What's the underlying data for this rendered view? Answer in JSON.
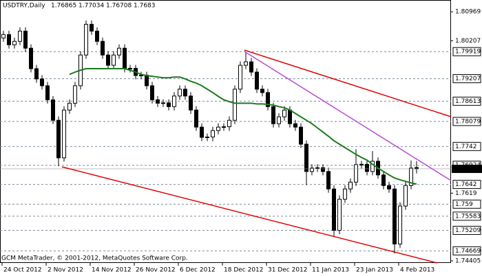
{
  "chart_data": {
    "type": "candlestick",
    "symbol": "USDTRY,Daily",
    "header_values": [
      1.76865,
      1.77034,
      1.76708,
      1.7683
    ],
    "footer": "GCM MetaTrader, © 2001-2012, MetaQuotes Software Corp.",
    "dates": [
      "24 Oct 2012",
      "2 Nov 2012",
      "14 Nov 2012",
      "26 Nov 2012",
      "6 Dec 2012",
      "18 Dec 2012",
      "31 Dec 2012",
      "11 Jan 2013",
      "23 Jan 2013",
      "4 Feb 2013"
    ],
    "ylim": [
      1.7435,
      1.8128
    ],
    "yticks": [
      1.80969,
      1.80207,
      1.7619,
      1.74405
    ],
    "levels": [
      1.79919,
      1.79207,
      1.78613,
      1.78079,
      1.7742,
      1.76924,
      1.7642,
      1.759,
      1.75583,
      1.75209,
      1.74669
    ],
    "current_price": 1.7683,
    "ohlc": [
      [
        1.8028,
        1.8047,
        1.8018,
        1.8037
      ],
      [
        1.8037,
        1.8047,
        1.8,
        1.801
      ],
      [
        1.801,
        1.8029,
        1.8,
        1.8019
      ],
      [
        1.8019,
        1.8056,
        1.8009,
        1.8046
      ],
      [
        1.8046,
        1.8056,
        1.7991,
        1.8001
      ],
      [
        1.8001,
        1.8011,
        1.7937,
        1.7947
      ],
      [
        1.7947,
        1.7957,
        1.791,
        1.792
      ],
      [
        1.792,
        1.793,
        1.7892,
        1.7902
      ],
      [
        1.7902,
        1.7912,
        1.7855,
        1.7865
      ],
      [
        1.7865,
        1.7875,
        1.7801,
        1.7811
      ],
      [
        1.7811,
        1.7821,
        1.769,
        1.7712
      ],
      [
        1.7712,
        1.7848,
        1.7702,
        1.7838
      ],
      [
        1.7838,
        1.7866,
        1.7828,
        1.7856
      ],
      [
        1.7856,
        1.7912,
        1.7846,
        1.7902
      ],
      [
        1.7902,
        1.7993,
        1.7892,
        1.7983
      ],
      [
        1.7983,
        1.8074,
        1.7973,
        1.8064
      ],
      [
        1.8064,
        1.8074,
        1.8036,
        1.8046
      ],
      [
        1.8046,
        1.8056,
        1.8009,
        1.8019
      ],
      [
        1.8019,
        1.8029,
        1.7973,
        1.7983
      ],
      [
        1.7983,
        1.7993,
        1.7946,
        1.7956
      ],
      [
        1.7956,
        1.7993,
        1.7946,
        1.7983
      ],
      [
        1.7983,
        1.8011,
        1.7973,
        1.8001
      ],
      [
        1.8001,
        1.8011,
        1.7937,
        1.7947
      ],
      [
        1.7947,
        1.7957,
        1.7937,
        1.7948
      ],
      [
        1.7948,
        1.7957,
        1.7919,
        1.7929
      ],
      [
        1.7929,
        1.7939,
        1.7919,
        1.793
      ],
      [
        1.793,
        1.7939,
        1.7892,
        1.7902
      ],
      [
        1.7902,
        1.7912,
        1.7855,
        1.7865
      ],
      [
        1.7865,
        1.7875,
        1.7846,
        1.7856
      ],
      [
        1.7856,
        1.7866,
        1.7846,
        1.7857
      ],
      [
        1.7857,
        1.7866,
        1.7837,
        1.7847
      ],
      [
        1.7847,
        1.7885,
        1.7837,
        1.7875
      ],
      [
        1.7875,
        1.7903,
        1.7865,
        1.7893
      ],
      [
        1.7893,
        1.7903,
        1.7865,
        1.7875
      ],
      [
        1.7875,
        1.7885,
        1.7828,
        1.7838
      ],
      [
        1.7838,
        1.7848,
        1.7783,
        1.7793
      ],
      [
        1.7793,
        1.7803,
        1.7756,
        1.7766
      ],
      [
        1.7766,
        1.7776,
        1.7756,
        1.7767
      ],
      [
        1.7767,
        1.7794,
        1.7756,
        1.7784
      ],
      [
        1.7784,
        1.7803,
        1.7774,
        1.7793
      ],
      [
        1.7793,
        1.7803,
        1.7783,
        1.7794
      ],
      [
        1.7794,
        1.7821,
        1.7783,
        1.7811
      ],
      [
        1.7811,
        1.7903,
        1.7801,
        1.7893
      ],
      [
        1.7893,
        1.7966,
        1.7883,
        1.7956
      ],
      [
        1.7956,
        1.799,
        1.7946,
        1.7965
      ],
      [
        1.7965,
        1.7975,
        1.7928,
        1.7938
      ],
      [
        1.7938,
        1.7948,
        1.7883,
        1.7893
      ],
      [
        1.7893,
        1.7903,
        1.7874,
        1.7884
      ],
      [
        1.7884,
        1.7894,
        1.7837,
        1.7847
      ],
      [
        1.7847,
        1.7857,
        1.7792,
        1.7802
      ],
      [
        1.7802,
        1.783,
        1.7792,
        1.782
      ],
      [
        1.782,
        1.7848,
        1.781,
        1.7838
      ],
      [
        1.7838,
        1.7848,
        1.7792,
        1.7802
      ],
      [
        1.7802,
        1.7812,
        1.7783,
        1.7793
      ],
      [
        1.7793,
        1.7803,
        1.7738,
        1.7748
      ],
      [
        1.7748,
        1.7758,
        1.764,
        1.7676
      ],
      [
        1.7676,
        1.7695,
        1.7666,
        1.7685
      ],
      [
        1.7685,
        1.7695,
        1.7675,
        1.7686
      ],
      [
        1.7686,
        1.7695,
        1.7666,
        1.7676
      ],
      [
        1.7676,
        1.7686,
        1.762,
        1.763
      ],
      [
        1.763,
        1.764,
        1.7505,
        1.7521
      ],
      [
        1.7521,
        1.7613,
        1.7511,
        1.7603
      ],
      [
        1.7603,
        1.764,
        1.7593,
        1.763
      ],
      [
        1.763,
        1.7658,
        1.762,
        1.7648
      ],
      [
        1.7648,
        1.7735,
        1.7638,
        1.7694
      ],
      [
        1.7694,
        1.7704,
        1.7684,
        1.7695
      ],
      [
        1.7695,
        1.7704,
        1.7666,
        1.7676
      ],
      [
        1.7676,
        1.773,
        1.7666,
        1.7703
      ],
      [
        1.7703,
        1.7713,
        1.7657,
        1.7667
      ],
      [
        1.7667,
        1.7677,
        1.7629,
        1.7639
      ],
      [
        1.7639,
        1.7649,
        1.762,
        1.763
      ],
      [
        1.763,
        1.764,
        1.746,
        1.7485
      ],
      [
        1.7485,
        1.7595,
        1.7475,
        1.7585
      ],
      [
        1.7585,
        1.7649,
        1.7575,
        1.7639
      ],
      [
        1.7639,
        1.7705,
        1.7629,
        1.7685
      ],
      [
        1.76865,
        1.77034,
        1.76708,
        1.7683
      ]
    ],
    "ma": {
      "color": "#1a7a1a",
      "values": [
        null,
        null,
        null,
        null,
        null,
        null,
        null,
        null,
        null,
        null,
        null,
        null,
        1.7932,
        1.7938,
        1.7943,
        1.7947,
        1.7947,
        1.7947,
        1.7947,
        1.7947,
        1.7947,
        1.7947,
        1.7947,
        1.7943,
        1.7938,
        1.7932,
        1.7929,
        1.7927,
        1.7925,
        1.7923,
        1.7923,
        1.7925,
        1.7925,
        1.792,
        1.7914,
        1.7909,
        1.7902,
        1.7893,
        1.7884,
        1.7874,
        1.7865,
        1.786,
        1.7856,
        1.7856,
        1.7856,
        1.7856,
        1.7854,
        1.7854,
        1.7853,
        1.7851,
        1.7847,
        1.7844,
        1.7838,
        1.7829,
        1.782,
        1.7811,
        1.7802,
        1.7791,
        1.778,
        1.7769,
        1.7757,
        1.7748,
        1.7739,
        1.773,
        1.7721,
        1.7713,
        1.7706,
        1.7695,
        1.7685,
        1.7676,
        1.7667,
        1.7659,
        1.7654,
        1.765,
        1.7646,
        1.7643
      ]
    }
  }
}
